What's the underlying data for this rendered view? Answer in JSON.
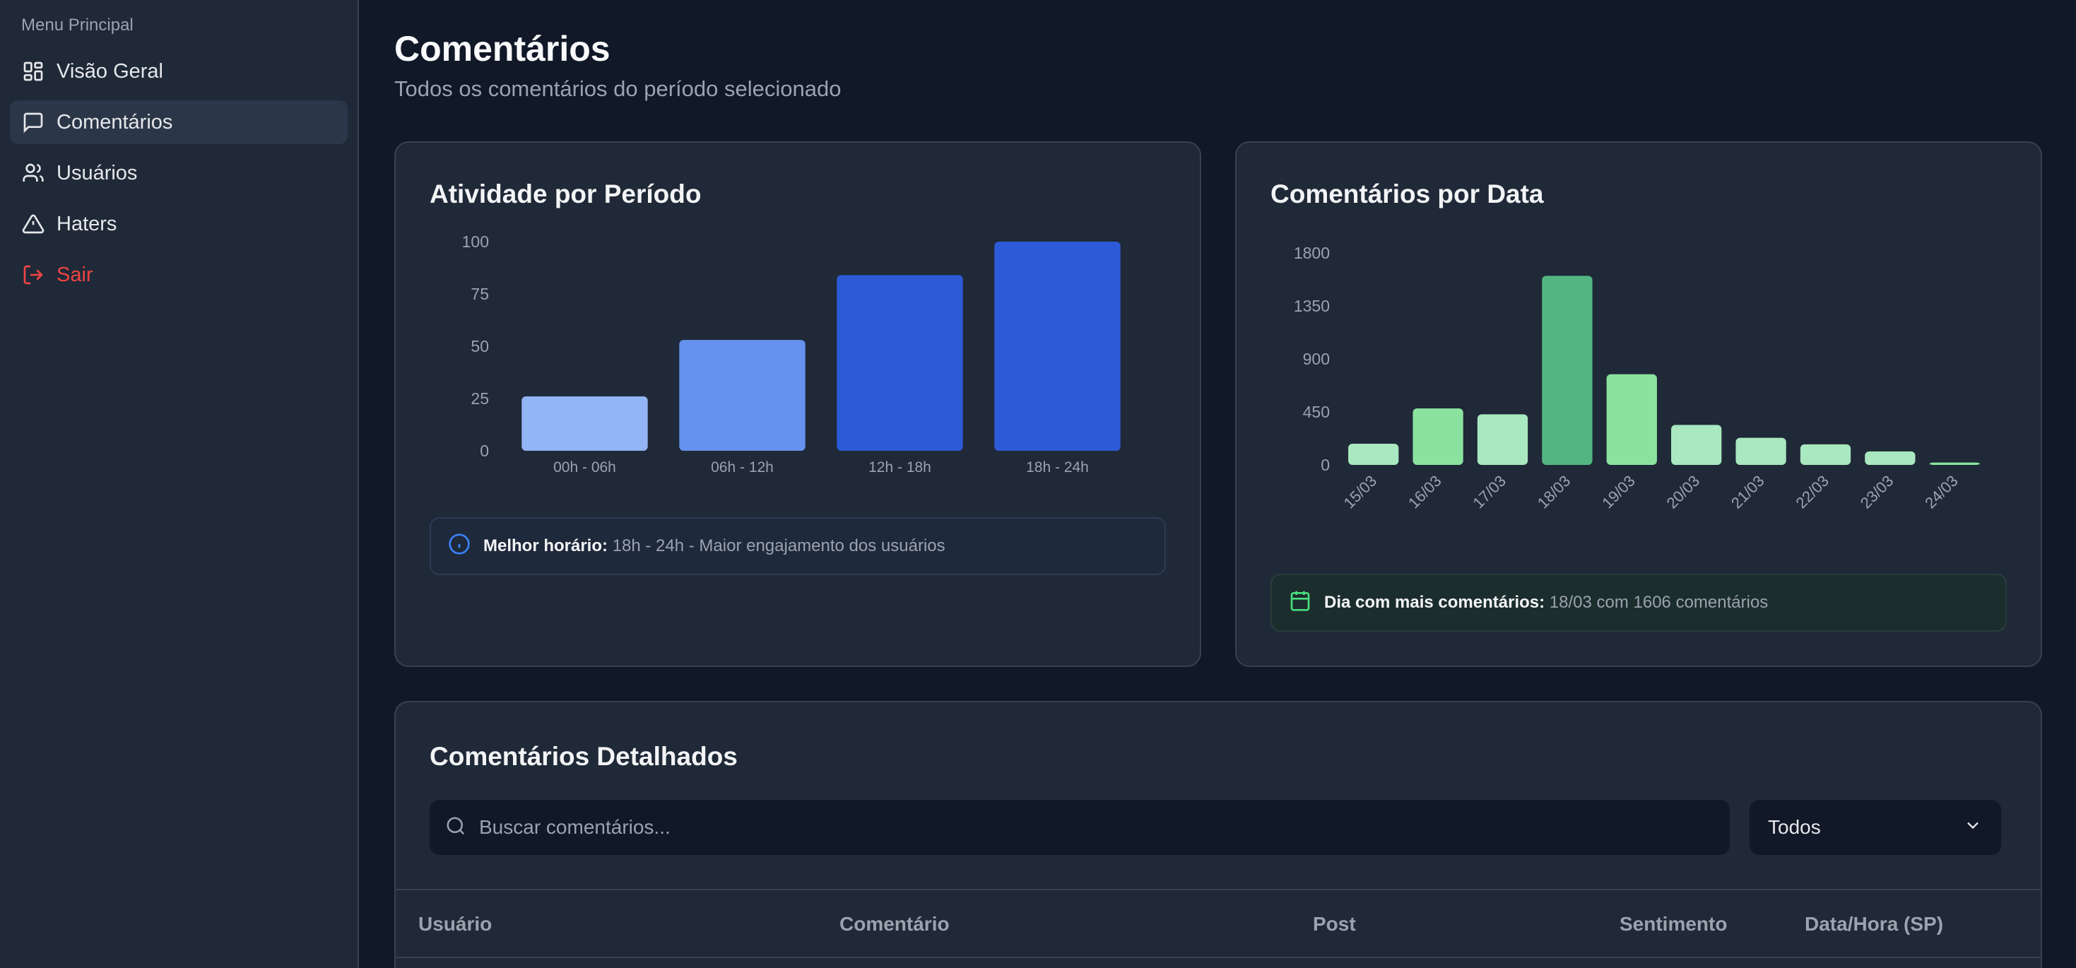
{
  "sidebar": {
    "title": "Menu Principal",
    "items": [
      {
        "label": "Visão Geral",
        "icon": "dashboard-icon"
      },
      {
        "label": "Comentários",
        "icon": "message-square-icon",
        "active": true
      },
      {
        "label": "Usuários",
        "icon": "users-icon"
      },
      {
        "label": "Haters",
        "icon": "alert-triangle-icon"
      },
      {
        "label": "Sair",
        "icon": "logout-icon"
      }
    ]
  },
  "header": {
    "title": "Comentários",
    "subtitle": "Todos os comentários do período selecionado"
  },
  "activity": {
    "title": "Atividade por Período",
    "info_strong": "Melhor horário:",
    "info_rest": "18h - 24h - Maior engajamento dos usuários"
  },
  "by_date": {
    "title": "Comentários por Data",
    "info_strong": "Dia com mais comentários:",
    "info_rest": "18/03 com 1606 comentários"
  },
  "chart_data": [
    {
      "type": "bar",
      "title": "Atividade por Período",
      "categories": [
        "00h - 06h",
        "06h - 12h",
        "12h - 18h",
        "18h - 24h"
      ],
      "values": [
        26,
        53,
        84,
        100
      ],
      "yticks": [
        0,
        25,
        50,
        75,
        100
      ],
      "ylim": [
        0,
        100
      ],
      "colors": [
        "#93b4f5",
        "#6691ef",
        "#2d5bd8",
        "#2d5bd8"
      ]
    },
    {
      "type": "bar",
      "title": "Comentários por Data",
      "categories": [
        "15/03",
        "16/03",
        "17/03",
        "18/03",
        "19/03",
        "20/03",
        "21/03",
        "22/03",
        "23/03",
        "24/03"
      ],
      "values": [
        180,
        480,
        430,
        1606,
        770,
        340,
        230,
        175,
        115,
        20
      ],
      "yticks": [
        0,
        450,
        900,
        1350,
        1800
      ],
      "ylim": [
        0,
        1800
      ],
      "colors": [
        "#a9e8c0",
        "#8ae29f",
        "#a9e8c0",
        "#53b682",
        "#8ae29f",
        "#a9e8c0",
        "#a9e8c0",
        "#a9e8c0",
        "#a9e8c0",
        "#8ae29f"
      ]
    }
  ],
  "details": {
    "title": "Comentários Detalhados",
    "search_placeholder": "Buscar comentários...",
    "filter_value": "Todos",
    "columns": [
      "Usuário",
      "Comentário",
      "Post",
      "Sentimento",
      "Data/Hora (SP)"
    ]
  }
}
